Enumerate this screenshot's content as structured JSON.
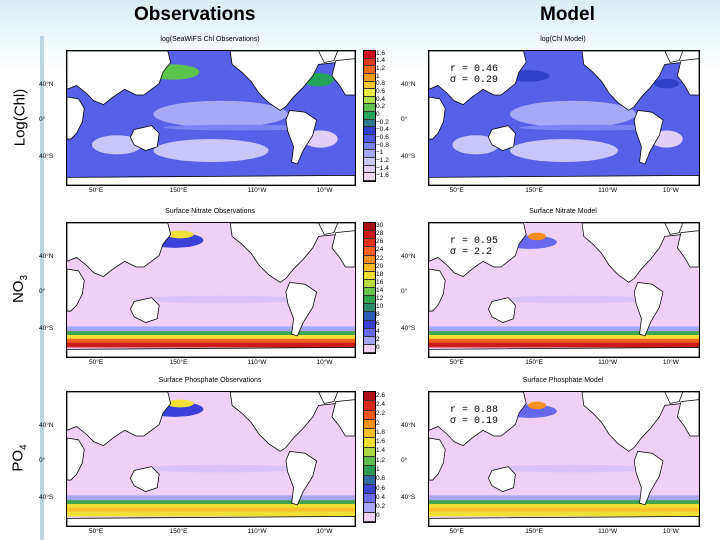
{
  "headers": {
    "observations": "Observations",
    "model": "Model"
  },
  "rows": [
    {
      "label": "Log(Chl)",
      "sub": "",
      "obs_title": "log(SeaWiFS Chl Observations)",
      "model_title": "log(Chl Model)",
      "stats": {
        "r": "r = 0.46",
        "sigma": "σ = 0.29"
      },
      "colorbar_labels": [
        "1.6",
        "1.4",
        "1.2",
        "1",
        "0.8",
        "0.6",
        "0.4",
        "0.2",
        "0",
        "−0.2",
        "−0.4",
        "−0.6",
        "−0.8",
        "−1",
        "−1.2",
        "−1.4",
        "−1.6"
      ],
      "colorbar_colors": [
        "#cc1020",
        "#e23a20",
        "#f26a1e",
        "#f89c20",
        "#f8c832",
        "#eaea46",
        "#aede4a",
        "#5cc44c",
        "#22a45a",
        "#2e7a8e",
        "#3040c8",
        "#4e5ae6",
        "#7a84f2",
        "#a6aaf6",
        "#c8c6fa",
        "#e0d0f8",
        "#f2d8f6"
      ]
    },
    {
      "label": "NO",
      "sub": "3",
      "obs_title": "Surface Nitrate Observations",
      "model_title": "Surface Nitrate Model",
      "stats": {
        "r": "r = 0.95",
        "sigma": "σ = 2.2"
      },
      "colorbar_labels": [
        "30",
        "28",
        "26",
        "24",
        "22",
        "20",
        "18",
        "16",
        "14",
        "12",
        "10",
        "8",
        "6",
        "4",
        "2",
        "0"
      ],
      "colorbar_colors": [
        "#a80e14",
        "#cc1c1a",
        "#e6341c",
        "#f4601e",
        "#f88e20",
        "#f8ba28",
        "#f0e036",
        "#b6dc40",
        "#6cc44a",
        "#30a450",
        "#2a8a6a",
        "#2e5cb2",
        "#3a40d8",
        "#6868ee",
        "#a4a4f6",
        "#f0d0f6"
      ]
    },
    {
      "label": "PO",
      "sub": "4",
      "obs_title": "Surface Phosphate Observations",
      "model_title": "Surface Phosphate Model",
      "stats": {
        "r": "r = 0.88",
        "sigma": "σ = 0.19"
      },
      "colorbar_labels": [
        "2.6",
        "2.4",
        "2.2",
        "2",
        "1.8",
        "1.6",
        "1.4",
        "1.2",
        "1",
        "0.8",
        "0.6",
        "0.4",
        "0.2",
        "0"
      ],
      "colorbar_colors": [
        "#b01016",
        "#d82a1a",
        "#f0561e",
        "#f8901e",
        "#f8c02a",
        "#f0e036",
        "#a8d844",
        "#5cbe4a",
        "#2a9c56",
        "#2e6aa4",
        "#3a44d4",
        "#6a6ced",
        "#a8a6f6",
        "#f0d0f6"
      ]
    }
  ],
  "lat_labels": [
    "40°N",
    "0°",
    "40°S"
  ],
  "lon_labels": [
    "50°E",
    "150°E",
    "110°W",
    "10°W"
  ]
}
